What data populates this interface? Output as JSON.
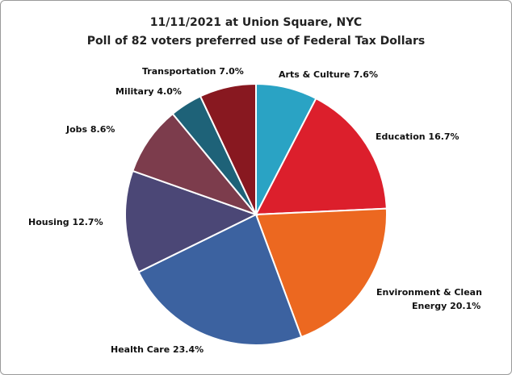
{
  "chart_data": {
    "type": "pie",
    "title": "11/11/2021 at Union Square, NYC",
    "subtitle": "Poll of 82 voters preferred use of Federal Tax Dollars",
    "slices": [
      {
        "label": "Arts & Culture",
        "value": 7.6,
        "label_text": "Arts & Culture 7.6%",
        "color": "#2aa3c4"
      },
      {
        "label": "Education",
        "value": 16.7,
        "label_text": "Education 16.7%",
        "color": "#dc1f2c"
      },
      {
        "label": "Environment & Clean Energy",
        "value": 20.1,
        "label_lines": [
          "Environment & Clean",
          "Energy 20.1%"
        ],
        "color": "#ec6820"
      },
      {
        "label": "Health Care",
        "value": 23.4,
        "label_text": "Health Care 23.4%",
        "color": "#3c62a0"
      },
      {
        "label": "Housing",
        "value": 12.7,
        "label_text": "Housing 12.7%",
        "color": "#4b4776"
      },
      {
        "label": "Jobs",
        "value": 8.6,
        "label_text": "Jobs 8.6%",
        "color": "#7c3c4c"
      },
      {
        "label": "Military",
        "value": 4.0,
        "label_text": "Military 4.0%",
        "color": "#1e6278"
      },
      {
        "label": "Transportation",
        "value": 7.0,
        "label_text": "Transportation 7.0%",
        "color": "#881820"
      }
    ]
  }
}
